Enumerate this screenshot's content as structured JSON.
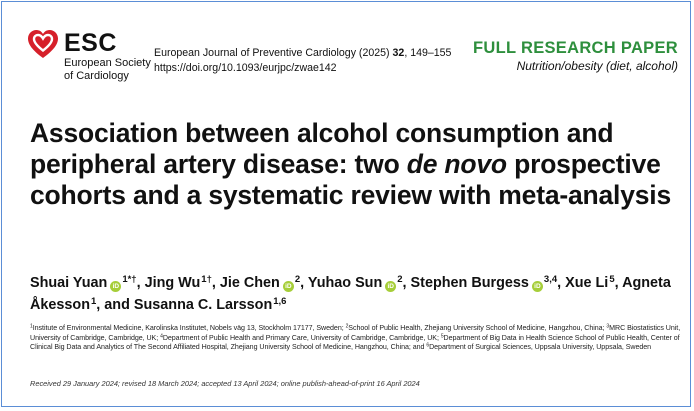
{
  "logo": {
    "name": "ESC",
    "subtitle_lines": [
      "European Society",
      "of Cardiology"
    ],
    "icon": "heart-icon",
    "color": "#d6202a"
  },
  "journal": {
    "name": "European Journal of Preventive Cardiology (2025)",
    "volume": "32",
    "pages": ", 149–155",
    "doi": "https://doi.org/10.1093/eurjpc/zwae142"
  },
  "category": {
    "label": "FULL RESEARCH PAPER",
    "topic": "Nutrition/obesity (diet, alcohol)",
    "color": "#2e8f3d"
  },
  "title": {
    "part1": "Association between alcohol consumption and peripheral artery disease: two ",
    "italic": "de novo",
    "part2": " prospective cohorts and a systematic review with meta-analysis"
  },
  "authors": [
    {
      "name": "Shuai Yuan",
      "orcid": true,
      "sup": "1*†",
      "sep": ", "
    },
    {
      "name": "Jing Wu",
      "orcid": false,
      "sup": "1†",
      "sep": ", "
    },
    {
      "name": "Jie Chen",
      "orcid": true,
      "sup": "2",
      "sep": ", "
    },
    {
      "name": "Yuhao Sun",
      "orcid": true,
      "sup": "2",
      "sep": ", "
    },
    {
      "name": "Stephen Burgess",
      "orcid": true,
      "sup": "3,4",
      "sep": ", "
    },
    {
      "name": "Xue Li",
      "orcid": false,
      "sup": "5",
      "sep": ", "
    },
    {
      "name": "Agneta Åkesson",
      "orcid": false,
      "sup": "1",
      "sep": ", and "
    },
    {
      "name": "Susanna C. Larsson",
      "orcid": false,
      "sup": "1,6",
      "sep": ""
    }
  ],
  "orcid_label": "iD",
  "affiliations": [
    {
      "num": "1",
      "text": "Institute of Environmental Medicine, Karolinska Institutet, Nobels väg 13, Stockholm 17177, Sweden; "
    },
    {
      "num": "2",
      "text": "School of Public Health, Zhejiang University School of Medicine, Hangzhou, China; "
    },
    {
      "num": "3",
      "text": "MRC Biostatistics Unit, University of Cambridge, Cambridge, UK; "
    },
    {
      "num": "4",
      "text": "Department of Public Health and Primary Care, University of Cambridge, Cambridge, UK; "
    },
    {
      "num": "5",
      "text": "Department of Big Data in Health Science School of Public Health, Center of Clinical Big Data and Analytics of The Second Affiliated Hospital, Zhejiang University School of Medicine, Hangzhou, China; and "
    },
    {
      "num": "6",
      "text": "Department of Surgical Sciences, Uppsala University, Uppsala, Sweden"
    }
  ],
  "received": "Received 29 January 2024; revised 18 March 2024; accepted 13 April 2024; online publish-ahead-of-print 16 April 2024"
}
